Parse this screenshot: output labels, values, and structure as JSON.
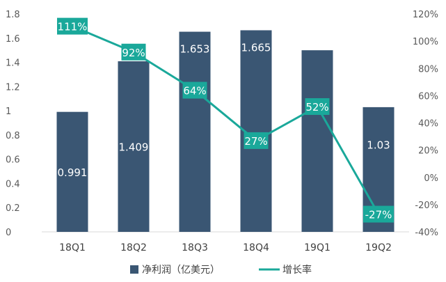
{
  "chart_data": {
    "type": "bar+line",
    "categories": [
      "18Q1",
      "18Q2",
      "18Q3",
      "18Q4",
      "19Q1",
      "19Q2"
    ],
    "series": [
      {
        "name": "净利润（亿美元）",
        "type": "bar",
        "axis": "left",
        "color": "#3a5673",
        "values": [
          0.991,
          1.409,
          1.653,
          1.665,
          1.5,
          1.03
        ],
        "labels": [
          "0.991",
          "1.409",
          "1.653",
          "1.665",
          "",
          "1.03"
        ]
      },
      {
        "name": "增长率",
        "type": "line",
        "axis": "right",
        "color": "#1aa89a",
        "values": [
          111,
          92,
          64,
          27,
          52,
          -27
        ],
        "labels": [
          "111%",
          "92%",
          "64%",
          "27%",
          "52%",
          "-27%"
        ]
      }
    ],
    "y_left": {
      "min": 0,
      "max": 1.8,
      "ticks": [
        "0",
        "0.2",
        "0.4",
        "0.6",
        "0.8",
        "1",
        "1.2",
        "1.4",
        "1.6",
        "1.8"
      ]
    },
    "y_right": {
      "min": -40,
      "max": 120,
      "ticks": [
        "-40%",
        "-20%",
        "0%",
        "20%",
        "40%",
        "60%",
        "80%",
        "100%",
        "120%"
      ]
    },
    "legend_position": "bottom",
    "grid": false
  }
}
